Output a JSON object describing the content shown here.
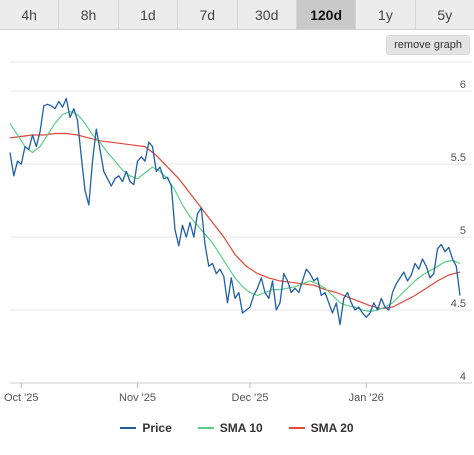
{
  "timeframe_tabs": [
    {
      "label": "4h",
      "active": false
    },
    {
      "label": "8h",
      "active": false
    },
    {
      "label": "1d",
      "active": false
    },
    {
      "label": "7d",
      "active": false
    },
    {
      "label": "30d",
      "active": false
    },
    {
      "label": "120d",
      "active": true
    },
    {
      "label": "1y",
      "active": false
    },
    {
      "label": "5y",
      "active": false
    }
  ],
  "remove_graph_label": "remove graph",
  "colors": {
    "price": "#1f5fa8",
    "sma10": "#5ccf86",
    "sma20": "#e0483a",
    "grid": "#e6e6e6"
  },
  "chart_data": {
    "type": "line",
    "title": "",
    "xlabel": "",
    "ylabel": "",
    "x_range": [
      "2025-09-28",
      "2026-01-26"
    ],
    "ylim": [
      4,
      6.2
    ],
    "y_ticks": [
      {
        "value": 4,
        "label": "4"
      },
      {
        "value": 4.5,
        "label": "4.5"
      },
      {
        "value": 5,
        "label": "5"
      },
      {
        "value": 5.5,
        "label": "5.5"
      },
      {
        "value": 6,
        "label": "6"
      }
    ],
    "x_ticks": [
      {
        "date": "2025-10-01",
        "label": "Oct '25"
      },
      {
        "date": "2025-11-01",
        "label": "Nov '25"
      },
      {
        "date": "2025-12-01",
        "label": "Dec '25"
      },
      {
        "date": "2026-01-01",
        "label": "Jan '26"
      }
    ],
    "grid": true,
    "legend_position": "bottom",
    "series": [
      {
        "name": "Price",
        "points": [
          [
            "2025-09-28",
            5.58
          ],
          [
            "2025-09-29",
            5.42
          ],
          [
            "2025-09-30",
            5.52
          ],
          [
            "2025-10-01",
            5.5
          ],
          [
            "2025-10-02",
            5.62
          ],
          [
            "2025-10-03",
            5.6
          ],
          [
            "2025-10-04",
            5.7
          ],
          [
            "2025-10-05",
            5.62
          ],
          [
            "2025-10-06",
            5.72
          ],
          [
            "2025-10-07",
            5.9
          ],
          [
            "2025-10-08",
            5.91
          ],
          [
            "2025-10-09",
            5.9
          ],
          [
            "2025-10-10",
            5.88
          ],
          [
            "2025-10-11",
            5.93
          ],
          [
            "2025-10-12",
            5.89
          ],
          [
            "2025-10-13",
            5.95
          ],
          [
            "2025-10-14",
            5.82
          ],
          [
            "2025-10-15",
            5.88
          ],
          [
            "2025-10-16",
            5.8
          ],
          [
            "2025-10-17",
            5.55
          ],
          [
            "2025-10-18",
            5.32
          ],
          [
            "2025-10-19",
            5.22
          ],
          [
            "2025-10-20",
            5.52
          ],
          [
            "2025-10-21",
            5.74
          ],
          [
            "2025-10-22",
            5.6
          ],
          [
            "2025-10-23",
            5.45
          ],
          [
            "2025-10-24",
            5.4
          ],
          [
            "2025-10-25",
            5.35
          ],
          [
            "2025-10-26",
            5.4
          ],
          [
            "2025-10-27",
            5.42
          ],
          [
            "2025-10-28",
            5.38
          ],
          [
            "2025-10-29",
            5.45
          ],
          [
            "2025-10-30",
            5.38
          ],
          [
            "2025-10-31",
            5.36
          ],
          [
            "2025-11-01",
            5.52
          ],
          [
            "2025-11-02",
            5.55
          ],
          [
            "2025-11-03",
            5.52
          ],
          [
            "2025-11-04",
            5.65
          ],
          [
            "2025-11-05",
            5.62
          ],
          [
            "2025-11-06",
            5.45
          ],
          [
            "2025-11-07",
            5.48
          ],
          [
            "2025-11-08",
            5.4
          ],
          [
            "2025-11-09",
            5.41
          ],
          [
            "2025-11-10",
            5.35
          ],
          [
            "2025-11-11",
            5.05
          ],
          [
            "2025-11-12",
            4.94
          ],
          [
            "2025-11-13",
            5.08
          ],
          [
            "2025-11-14",
            5.0
          ],
          [
            "2025-11-15",
            5.1
          ],
          [
            "2025-11-16",
            5.0
          ],
          [
            "2025-11-17",
            5.16
          ],
          [
            "2025-11-18",
            5.2
          ],
          [
            "2025-11-19",
            4.95
          ],
          [
            "2025-11-20",
            4.8
          ],
          [
            "2025-11-21",
            4.82
          ],
          [
            "2025-11-22",
            4.75
          ],
          [
            "2025-11-23",
            4.78
          ],
          [
            "2025-11-24",
            4.73
          ],
          [
            "2025-11-25",
            4.55
          ],
          [
            "2025-11-26",
            4.72
          ],
          [
            "2025-11-27",
            4.58
          ],
          [
            "2025-11-28",
            4.62
          ],
          [
            "2025-11-29",
            4.48
          ],
          [
            "2025-11-30",
            4.5
          ],
          [
            "2025-12-01",
            4.52
          ],
          [
            "2025-12-02",
            4.6
          ],
          [
            "2025-12-03",
            4.65
          ],
          [
            "2025-12-04",
            4.72
          ],
          [
            "2025-12-05",
            4.62
          ],
          [
            "2025-12-06",
            4.58
          ],
          [
            "2025-12-07",
            4.7
          ],
          [
            "2025-12-08",
            4.5
          ],
          [
            "2025-12-09",
            4.55
          ],
          [
            "2025-12-10",
            4.75
          ],
          [
            "2025-12-11",
            4.7
          ],
          [
            "2025-12-12",
            4.62
          ],
          [
            "2025-12-13",
            4.65
          ],
          [
            "2025-12-14",
            4.62
          ],
          [
            "2025-12-15",
            4.7
          ],
          [
            "2025-12-16",
            4.78
          ],
          [
            "2025-12-17",
            4.75
          ],
          [
            "2025-12-18",
            4.7
          ],
          [
            "2025-12-19",
            4.72
          ],
          [
            "2025-12-20",
            4.6
          ],
          [
            "2025-12-21",
            4.62
          ],
          [
            "2025-12-22",
            4.55
          ],
          [
            "2025-12-23",
            4.48
          ],
          [
            "2025-12-24",
            4.55
          ],
          [
            "2025-12-25",
            4.4
          ],
          [
            "2025-12-26",
            4.58
          ],
          [
            "2025-12-27",
            4.62
          ],
          [
            "2025-12-28",
            4.55
          ],
          [
            "2025-12-29",
            4.5
          ],
          [
            "2025-12-30",
            4.52
          ],
          [
            "2025-12-31",
            4.48
          ],
          [
            "2026-01-01",
            4.45
          ],
          [
            "2026-01-02",
            4.48
          ],
          [
            "2026-01-03",
            4.55
          ],
          [
            "2026-01-04",
            4.5
          ],
          [
            "2026-01-05",
            4.58
          ],
          [
            "2026-01-06",
            4.52
          ],
          [
            "2026-01-07",
            4.5
          ],
          [
            "2026-01-08",
            4.62
          ],
          [
            "2026-01-09",
            4.68
          ],
          [
            "2026-01-10",
            4.72
          ],
          [
            "2026-01-11",
            4.76
          ],
          [
            "2026-01-12",
            4.7
          ],
          [
            "2026-01-13",
            4.74
          ],
          [
            "2026-01-14",
            4.82
          ],
          [
            "2026-01-15",
            4.78
          ],
          [
            "2026-01-16",
            4.85
          ],
          [
            "2026-01-17",
            4.8
          ],
          [
            "2026-01-18",
            4.72
          ],
          [
            "2026-01-19",
            4.75
          ],
          [
            "2026-01-20",
            4.92
          ],
          [
            "2026-01-21",
            4.95
          ],
          [
            "2026-01-22",
            4.9
          ],
          [
            "2026-01-23",
            4.93
          ],
          [
            "2026-01-24",
            4.85
          ],
          [
            "2026-01-25",
            4.8
          ],
          [
            "2026-01-26",
            4.6
          ]
        ]
      },
      {
        "name": "SMA 10",
        "points": [
          [
            "2025-09-28",
            5.78
          ],
          [
            "2025-09-30",
            5.7
          ],
          [
            "2025-10-02",
            5.62
          ],
          [
            "2025-10-04",
            5.58
          ],
          [
            "2025-10-06",
            5.62
          ],
          [
            "2025-10-08",
            5.7
          ],
          [
            "2025-10-10",
            5.78
          ],
          [
            "2025-10-12",
            5.84
          ],
          [
            "2025-10-14",
            5.86
          ],
          [
            "2025-10-16",
            5.84
          ],
          [
            "2025-10-18",
            5.78
          ],
          [
            "2025-10-20",
            5.7
          ],
          [
            "2025-10-22",
            5.65
          ],
          [
            "2025-10-24",
            5.58
          ],
          [
            "2025-10-26",
            5.52
          ],
          [
            "2025-10-28",
            5.46
          ],
          [
            "2025-10-30",
            5.42
          ],
          [
            "2025-11-01",
            5.4
          ],
          [
            "2025-11-03",
            5.44
          ],
          [
            "2025-11-05",
            5.48
          ],
          [
            "2025-11-07",
            5.45
          ],
          [
            "2025-11-09",
            5.4
          ],
          [
            "2025-11-11",
            5.32
          ],
          [
            "2025-11-13",
            5.22
          ],
          [
            "2025-11-15",
            5.14
          ],
          [
            "2025-11-17",
            5.08
          ],
          [
            "2025-11-19",
            5.02
          ],
          [
            "2025-11-21",
            4.96
          ],
          [
            "2025-11-23",
            4.88
          ],
          [
            "2025-11-25",
            4.8
          ],
          [
            "2025-11-27",
            4.72
          ],
          [
            "2025-11-29",
            4.66
          ],
          [
            "2025-12-01",
            4.62
          ],
          [
            "2025-12-03",
            4.6
          ],
          [
            "2025-12-05",
            4.62
          ],
          [
            "2025-12-07",
            4.64
          ],
          [
            "2025-12-09",
            4.64
          ],
          [
            "2025-12-11",
            4.65
          ],
          [
            "2025-12-13",
            4.66
          ],
          [
            "2025-12-15",
            4.68
          ],
          [
            "2025-12-17",
            4.7
          ],
          [
            "2025-12-19",
            4.68
          ],
          [
            "2025-12-21",
            4.65
          ],
          [
            "2025-12-23",
            4.6
          ],
          [
            "2025-12-25",
            4.55
          ],
          [
            "2025-12-27",
            4.53
          ],
          [
            "2025-12-29",
            4.52
          ],
          [
            "2025-12-31",
            4.5
          ],
          [
            "2026-01-02",
            4.49
          ],
          [
            "2026-01-04",
            4.5
          ],
          [
            "2026-01-06",
            4.52
          ],
          [
            "2026-01-08",
            4.55
          ],
          [
            "2026-01-10",
            4.6
          ],
          [
            "2026-01-12",
            4.65
          ],
          [
            "2026-01-14",
            4.7
          ],
          [
            "2026-01-16",
            4.74
          ],
          [
            "2026-01-18",
            4.77
          ],
          [
            "2026-01-20",
            4.8
          ],
          [
            "2026-01-22",
            4.83
          ],
          [
            "2026-01-24",
            4.84
          ],
          [
            "2026-01-26",
            4.82
          ]
        ]
      },
      {
        "name": "SMA 20",
        "points": [
          [
            "2025-09-28",
            5.68
          ],
          [
            "2025-10-01",
            5.69
          ],
          [
            "2025-10-04",
            5.7
          ],
          [
            "2025-10-07",
            5.7
          ],
          [
            "2025-10-10",
            5.71
          ],
          [
            "2025-10-13",
            5.71
          ],
          [
            "2025-10-16",
            5.7
          ],
          [
            "2025-10-19",
            5.68
          ],
          [
            "2025-10-22",
            5.66
          ],
          [
            "2025-10-25",
            5.65
          ],
          [
            "2025-10-28",
            5.64
          ],
          [
            "2025-10-31",
            5.63
          ],
          [
            "2025-11-03",
            5.62
          ],
          [
            "2025-11-06",
            5.56
          ],
          [
            "2025-11-09",
            5.48
          ],
          [
            "2025-11-12",
            5.4
          ],
          [
            "2025-11-15",
            5.3
          ],
          [
            "2025-11-18",
            5.2
          ],
          [
            "2025-11-21",
            5.1
          ],
          [
            "2025-11-24",
            5.0
          ],
          [
            "2025-11-27",
            4.88
          ],
          [
            "2025-11-30",
            4.8
          ],
          [
            "2025-12-03",
            4.75
          ],
          [
            "2025-12-06",
            4.72
          ],
          [
            "2025-12-09",
            4.7
          ],
          [
            "2025-12-12",
            4.69
          ],
          [
            "2025-12-15",
            4.68
          ],
          [
            "2025-12-18",
            4.67
          ],
          [
            "2025-12-21",
            4.64
          ],
          [
            "2025-12-24",
            4.62
          ],
          [
            "2025-12-27",
            4.59
          ],
          [
            "2025-12-30",
            4.56
          ],
          [
            "2026-01-02",
            4.53
          ],
          [
            "2026-01-05",
            4.51
          ],
          [
            "2026-01-08",
            4.52
          ],
          [
            "2026-01-11",
            4.56
          ],
          [
            "2026-01-14",
            4.6
          ],
          [
            "2026-01-17",
            4.65
          ],
          [
            "2026-01-20",
            4.7
          ],
          [
            "2026-01-23",
            4.74
          ],
          [
            "2026-01-26",
            4.76
          ]
        ]
      }
    ]
  }
}
